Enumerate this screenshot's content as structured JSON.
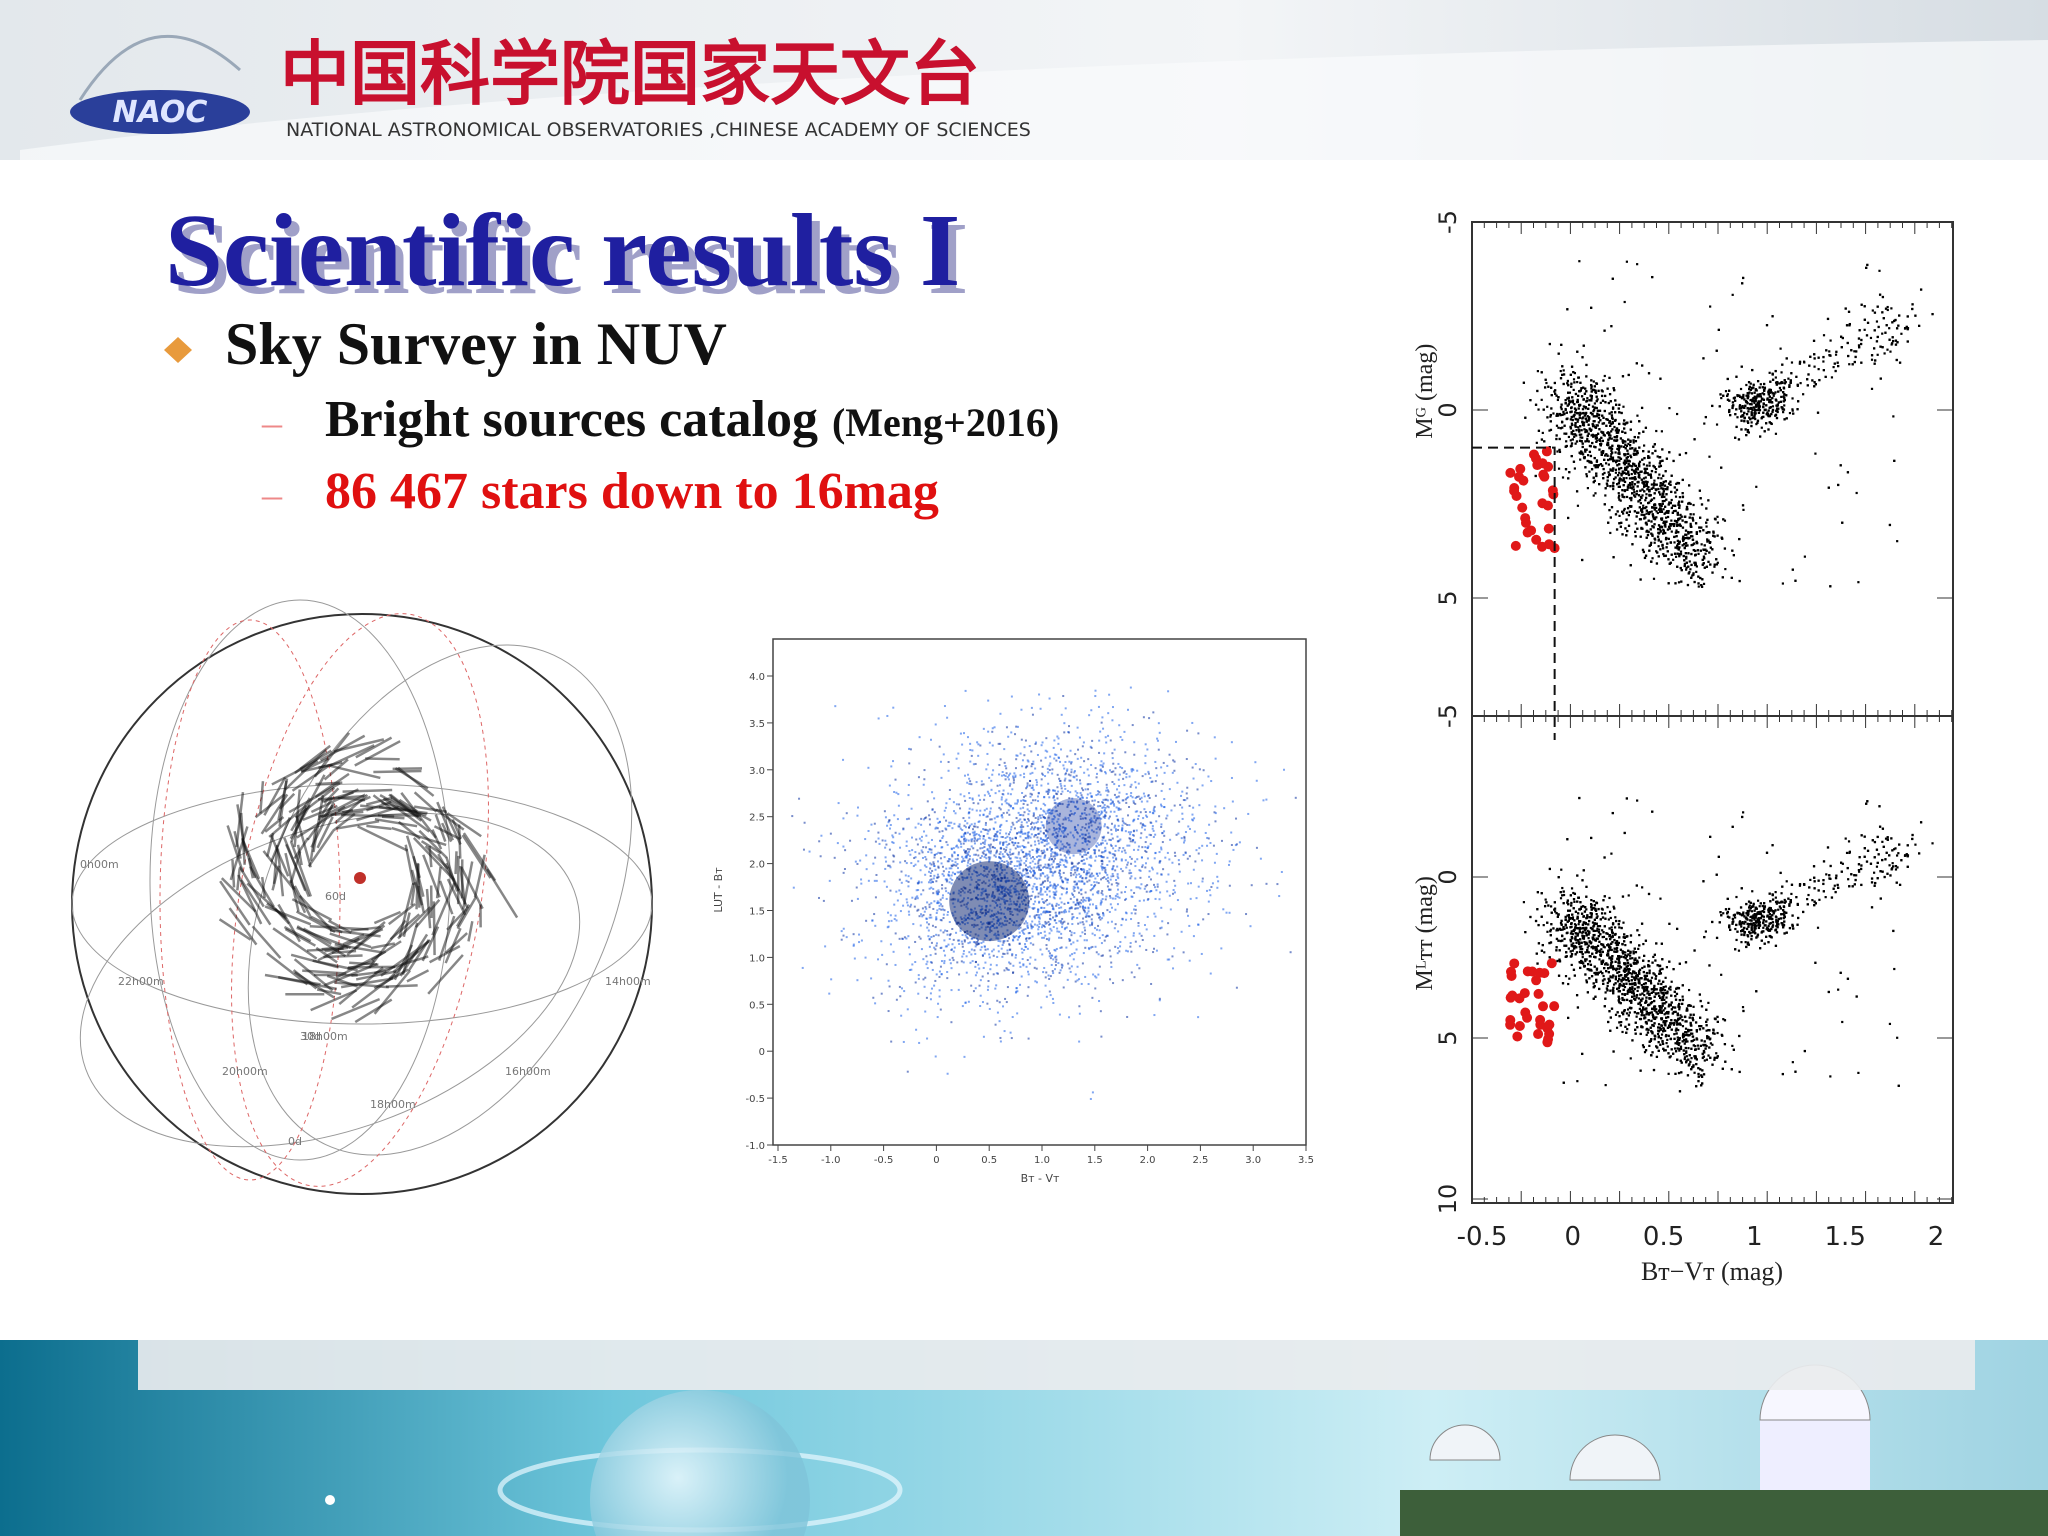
{
  "header": {
    "chinese_name": "中国科学院国家天文台",
    "english_name": "NATIONAL ASTRONOMICAL OBSERVATORIES ,CHINESE ACADEMY OF SCIENCES",
    "logo": "NAOC"
  },
  "slide": {
    "title": "Scientific results I",
    "bullet": "Sky Survey in NUV",
    "subbullets": [
      {
        "dash": "–",
        "text": "Bright sources catalog",
        "note": "(Meng+2016)"
      },
      {
        "dash": "–",
        "text": "86 467 stars down to 16mag"
      }
    ]
  },
  "sky_map": {
    "labels": [
      "0h00m",
      "22h00m",
      "20h00m",
      "18h00m",
      "18h00m",
      "16h00m",
      "14h00m",
      "60d",
      "30d",
      "0d"
    ]
  },
  "color_plot": {
    "yticks": [
      "4.0",
      "3.5",
      "3.0",
      "2.5",
      "2.0",
      "1.5",
      "1.0",
      "0.5",
      "0",
      "-0.5",
      "-1.0"
    ],
    "xticks": [
      "-1.5",
      "-1.0",
      "-0.5",
      "0",
      "0.5",
      "1.0",
      "1.5",
      "2.0",
      "2.5",
      "3.0",
      "3.5"
    ],
    "ylabel": "LUT - Bᴛ",
    "xlabel": "Bᴛ - Vᴛ"
  },
  "cmd_plot": {
    "top_yticks": [
      "-5",
      "0",
      "5"
    ],
    "top_ylabel": "Mᴳ (mag)",
    "bottom_yticks": [
      "-5",
      "0",
      "5",
      "10"
    ],
    "bottom_ylabel": "Mᴸᴛᴛ (mag)",
    "xticks": [
      "-0.5",
      "0",
      "0.5",
      "1",
      "1.5",
      "2"
    ],
    "xlabel": "Bᴛ−Vᴛ (mag)"
  }
}
